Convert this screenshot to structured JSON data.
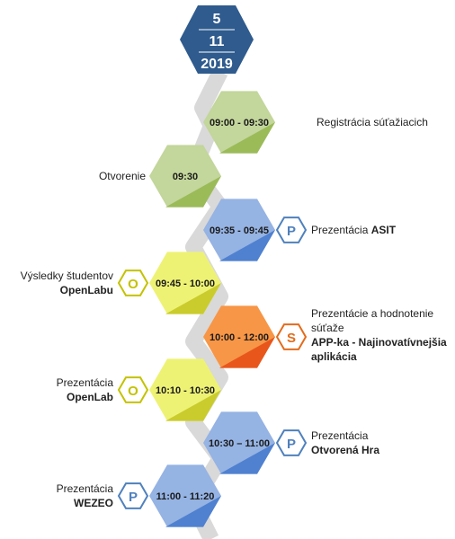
{
  "date": {
    "day": "5",
    "month": "11",
    "year": "2019",
    "color": "#2f5b8e"
  },
  "colors": {
    "green_light": "#c3d69b",
    "green_dark": "#9bbb59",
    "blue_light": "#95b3e3",
    "blue_dark": "#4f81d0",
    "yellow_light": "#eef274",
    "yellow_dark": "#c9cc2c",
    "orange_light": "#f79646",
    "orange_dark": "#e8561c",
    "badge_blue": "#4f81bd",
    "badge_yellow": "#c4c200",
    "badge_orange": "#e36c1c"
  },
  "events": [
    {
      "time": "09:00 - 09:30",
      "side": "right",
      "color": "green",
      "badge": "",
      "title": "Registrácia  súťažiacich",
      "detail": ""
    },
    {
      "time": "09:30",
      "side": "left",
      "color": "green",
      "badge": "",
      "title": "Otvorenie",
      "detail": ""
    },
    {
      "time": "09:35 - 09:45",
      "side": "right",
      "color": "blue",
      "badge": "P",
      "title": "Prezentácia",
      "detail": "ASIT"
    },
    {
      "time": "09:45 - 10:00",
      "side": "left",
      "color": "yellow",
      "badge": "O",
      "title": "Výsledky študentov",
      "detail": "OpenLabu"
    },
    {
      "time": "10:00 - 12:00",
      "side": "right",
      "color": "orange",
      "badge": "S",
      "title": "Prezentácie a hodnotenie súťaže",
      "detail": "APP-ka - Najinovatívnejšia aplikácia"
    },
    {
      "time": "10:10 - 10:30",
      "side": "left",
      "color": "yellow",
      "badge": "O",
      "title": "Prezentácia",
      "detail": "OpenLab"
    },
    {
      "time": "10:30 – 11:00",
      "side": "right",
      "color": "blue",
      "badge": "P",
      "title": "Prezentácia",
      "detail": "Otvorená Hra"
    },
    {
      "time": "11:00 - 11:20",
      "side": "left",
      "color": "blue",
      "badge": "P",
      "title": "Prezentácia",
      "detail": "WEZEO"
    }
  ]
}
